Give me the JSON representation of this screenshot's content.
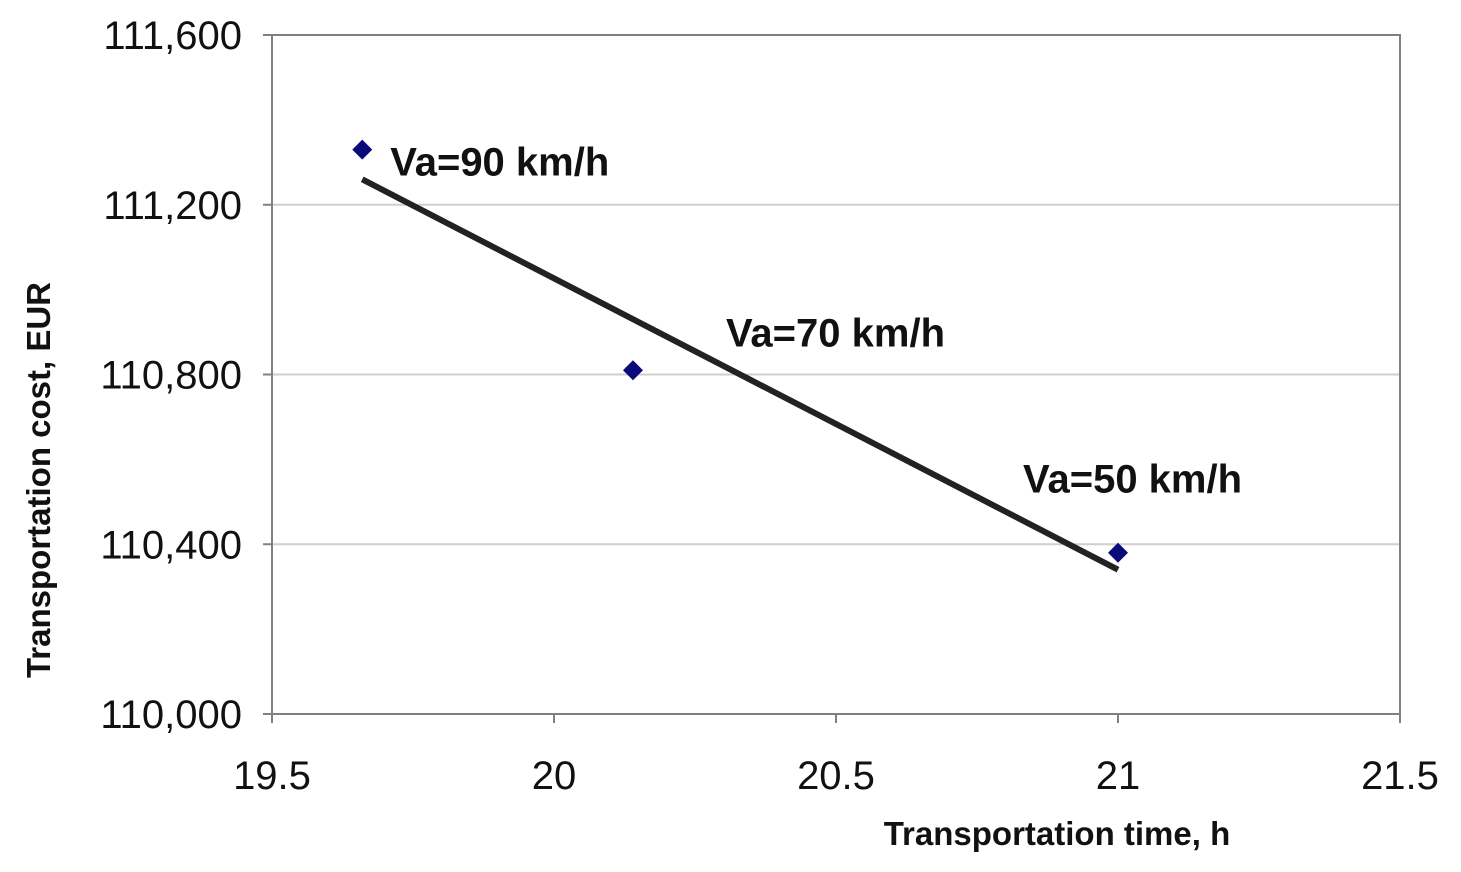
{
  "chart_data": {
    "type": "scatter",
    "title": "",
    "xlabel": "Transportation time, h",
    "ylabel": "Transportation cost, EUR",
    "xlim": [
      19.5,
      21.5
    ],
    "ylim": [
      110000,
      111600
    ],
    "x_ticks": [
      19.5,
      20,
      20.5,
      21,
      21.5
    ],
    "x_tick_labels": [
      "19.5",
      "20",
      "20.5",
      "21",
      "21.5"
    ],
    "y_ticks": [
      110000,
      110400,
      110800,
      111200,
      111600
    ],
    "y_tick_labels": [
      "110,000",
      "110,400",
      "110,800",
      "111,200",
      "111,600"
    ],
    "grid": "horizontal",
    "series": [
      {
        "name": "Transportation cost",
        "marker": "diamond",
        "color": "#0a0a7a",
        "points": [
          {
            "x": 19.66,
            "y": 111330,
            "label": "Va=90 km/h"
          },
          {
            "x": 20.14,
            "y": 110810,
            "label": "Va=70 km/h"
          },
          {
            "x": 21.0,
            "y": 110380,
            "label": "Va=50 km/h"
          }
        ]
      }
    ],
    "trendline": {
      "type": "linear",
      "color": "#222222",
      "from": {
        "x": 19.66,
        "y": 111260
      },
      "to": {
        "x": 21.0,
        "y": 110340
      }
    },
    "colors": {
      "grid": "#cfcfcf",
      "axis": "#808080",
      "marker": "#0a0a7a",
      "trendline": "#222222"
    }
  }
}
